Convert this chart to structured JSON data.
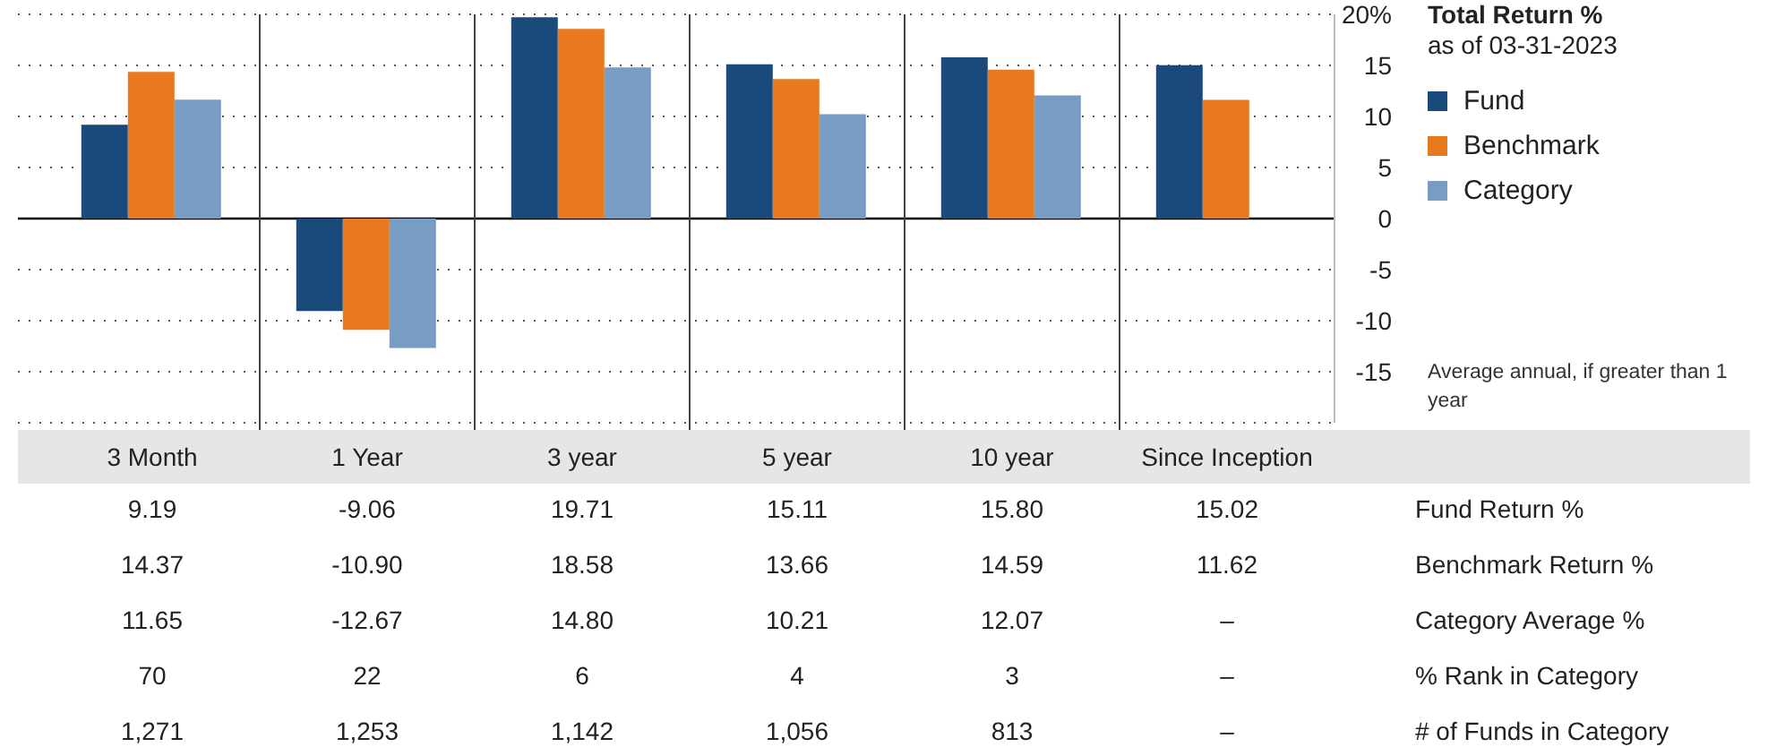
{
  "chart_data": {
    "type": "bar",
    "title": "Total Return %",
    "subtitle": "as of 03-31-2023",
    "categories": [
      "3 Month",
      "1 Year",
      "3 year",
      "5 year",
      "10 year",
      "Since Inception"
    ],
    "series": [
      {
        "name": "Fund",
        "color": "#1a4a7c",
        "values": [
          9.19,
          -9.06,
          19.71,
          15.11,
          15.8,
          15.02
        ],
        "value_labels": [
          "9.19",
          "-9.06",
          "19.71",
          "15.11",
          "15.80",
          "15.02"
        ]
      },
      {
        "name": "Benchmark",
        "color": "#e8791e",
        "values": [
          14.37,
          -10.9,
          18.58,
          13.66,
          14.59,
          11.62
        ],
        "value_labels": [
          "14.37",
          "-10.90",
          "18.58",
          "13.66",
          "14.59",
          "11.62"
        ]
      },
      {
        "name": "Category",
        "color": "#789dc4",
        "values": [
          11.65,
          -12.67,
          14.8,
          10.21,
          12.07,
          null
        ],
        "value_labels": [
          "11.65",
          "-12.67",
          "14.80",
          "10.21",
          "12.07",
          "–"
        ]
      }
    ],
    "ylim": [
      -20,
      20
    ],
    "yticks": [
      -15,
      -10,
      -5,
      0,
      5,
      10,
      15,
      {
        "value": 20,
        "label": "20%"
      }
    ],
    "grid": true,
    "legend": "right",
    "annotations": [
      "Average annual, if greater than 1 year",
      "Fund Return %",
      "Benchmark Return %",
      "Category Average %",
      "% Rank in Category",
      "70",
      "22",
      "6",
      "4",
      "3",
      "–",
      "# of Funds in Category",
      "1,271",
      "1,253",
      "1,142",
      "1,056",
      "813",
      "–"
    ]
  }
}
